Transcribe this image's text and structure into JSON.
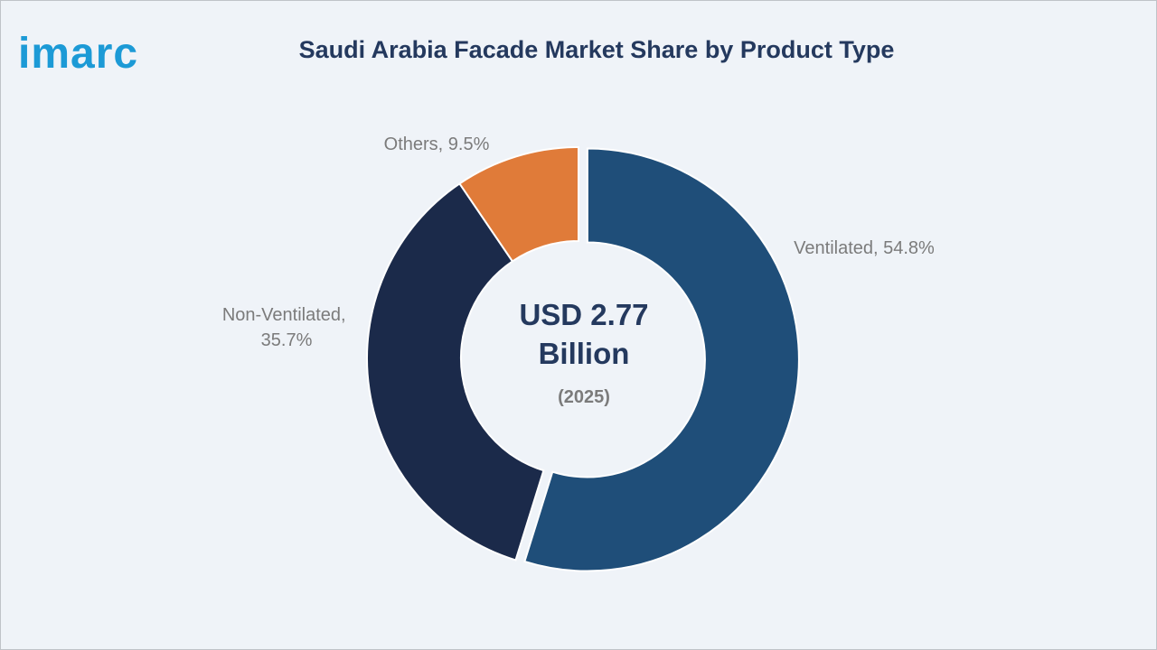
{
  "brand": {
    "logo_text": "imarc",
    "logo_color": "#1c9ad6"
  },
  "title": "Saudi Arabia Facade Market Share by Product Type",
  "chart_data": {
    "type": "pie",
    "variant": "donut",
    "title": "Saudi Arabia Facade Market Share by Product Type",
    "unit": "%",
    "center_text": {
      "value_line1": "USD 2.77",
      "value_line2": "Billion",
      "year": "(2025)"
    },
    "slices": [
      {
        "name": "Ventilated",
        "value": 54.8,
        "label": "Ventilated, 54.8%",
        "color": "#1f4e79",
        "exploded": true
      },
      {
        "name": "Non-Ventilated",
        "value": 35.7,
        "label_lines": [
          "Non-Ventilated,",
          "35.7%"
        ],
        "color": "#1b2a4a",
        "exploded": false
      },
      {
        "name": "Others",
        "value": 9.5,
        "label": "Others, 9.5%",
        "color": "#e07b39",
        "exploded": false
      }
    ]
  }
}
